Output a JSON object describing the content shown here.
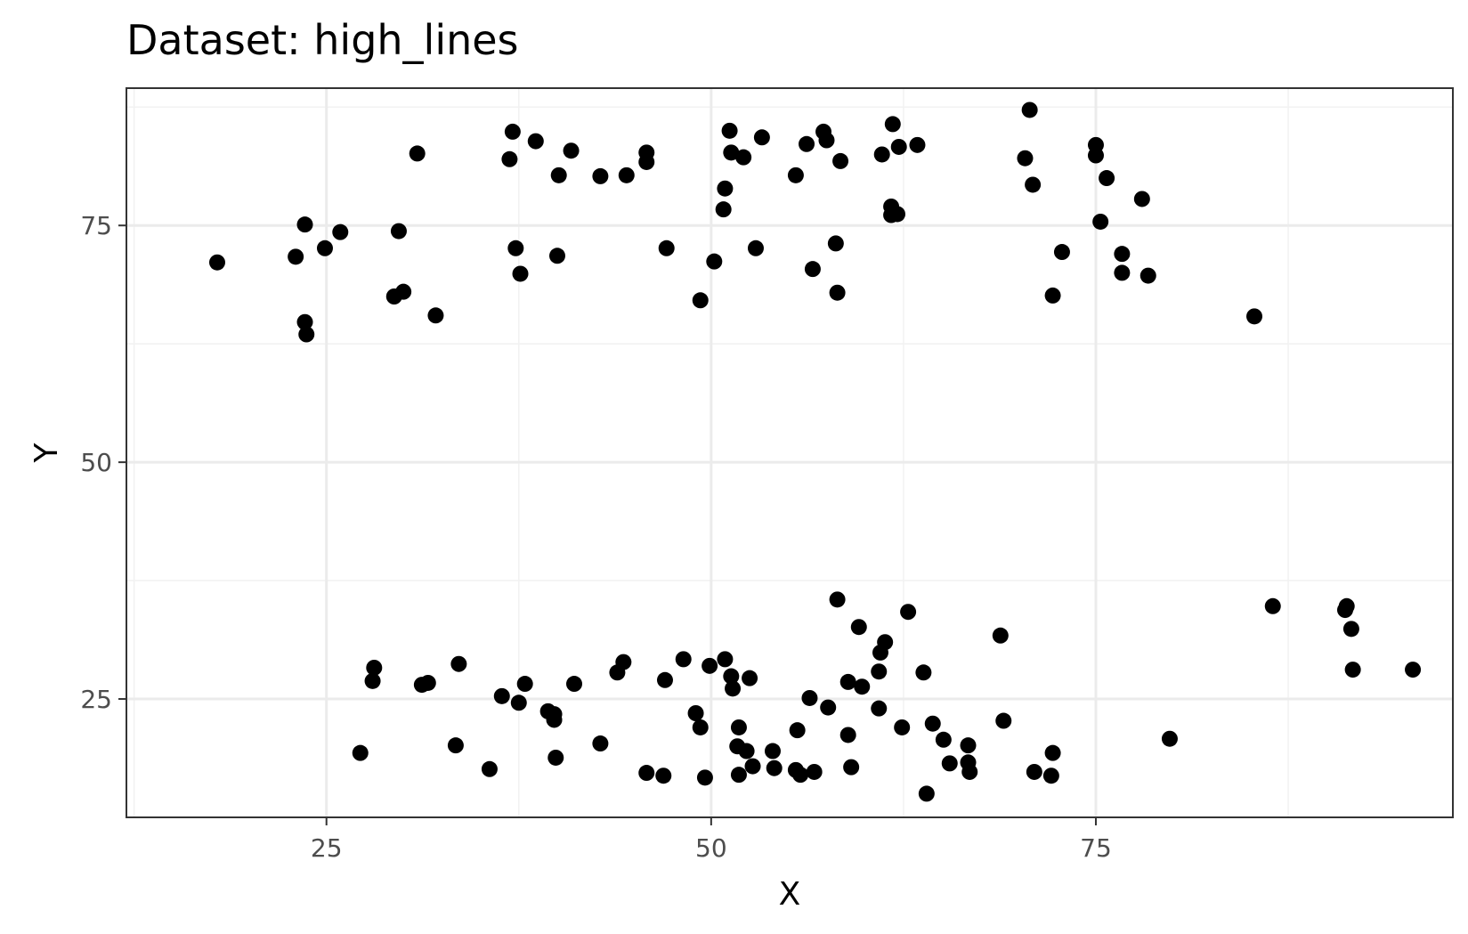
{
  "chart_data": {
    "type": "scatter",
    "title": "Dataset: high_lines",
    "xlabel": "X",
    "ylabel": "Y",
    "xlim": [
      12.0,
      98.2
    ],
    "ylim": [
      12.5,
      89.5
    ],
    "x_ticks": [
      25,
      50,
      75
    ],
    "y_ticks": [
      25,
      50,
      75
    ],
    "x_tick_labels": [
      "25",
      "50",
      "75"
    ],
    "y_tick_labels": [
      "25",
      "50",
      "75"
    ],
    "grid": true,
    "legend": "none",
    "point_color": "#000000",
    "series": [
      {
        "x": [
          17.9,
          23.0,
          23.6,
          23.6,
          23.7,
          24.9,
          25.9,
          29.4,
          29.7,
          30.0,
          30.9,
          32.1,
          36.9,
          37.1,
          37.3,
          37.6,
          38.6,
          40.1,
          40.0,
          40.9,
          42.8,
          44.5,
          45.8,
          45.8,
          47.1,
          49.3,
          50.2,
          50.8,
          50.9,
          51.2,
          51.3,
          52.1,
          52.9,
          53.3,
          55.5,
          56.2,
          56.6,
          57.3,
          57.5,
          58.1,
          58.2,
          58.4,
          61.1,
          61.7,
          61.7,
          61.8,
          62.1,
          62.2,
          63.4,
          70.4,
          70.7,
          70.9,
          72.2,
          72.8,
          75.0,
          75.0,
          75.3,
          75.7,
          76.7,
          76.7,
          78.0,
          78.4,
          85.3
        ],
        "y": [
          71.1,
          71.7,
          75.1,
          64.8,
          63.5,
          72.6,
          74.3,
          67.5,
          74.4,
          68.0,
          82.6,
          65.5,
          82.0,
          84.9,
          72.6,
          69.9,
          83.9,
          80.3,
          71.8,
          82.9,
          80.2,
          80.3,
          81.7,
          82.7,
          72.6,
          67.1,
          71.2,
          76.7,
          78.9,
          85.0,
          82.7,
          82.2,
          72.6,
          84.3,
          80.3,
          83.6,
          70.4,
          84.9,
          84.0,
          73.1,
          67.9,
          81.8,
          82.5,
          77.0,
          76.1,
          85.7,
          76.2,
          83.3,
          83.5,
          82.1,
          87.2,
          79.3,
          67.6,
          72.2,
          82.4,
          83.5,
          75.4,
          80.0,
          72.0,
          70.0,
          77.8,
          69.7,
          65.4
        ]
      },
      {
        "x": [
          27.2,
          28.0,
          28.1,
          31.2,
          31.6,
          33.4,
          33.6,
          35.6,
          36.4,
          37.5,
          37.9,
          39.4,
          39.8,
          39.8,
          39.9,
          41.1,
          42.8,
          43.9,
          44.3,
          45.8,
          46.9,
          47.0,
          48.2,
          49.0,
          49.3,
          49.6,
          49.9,
          50.9,
          51.3,
          51.4,
          51.7,
          51.8,
          51.8,
          52.3,
          52.5,
          52.7,
          54.0,
          54.1,
          55.5,
          55.6,
          55.8,
          56.4,
          56.7,
          57.6,
          58.2,
          58.9,
          58.9,
          59.1,
          59.6,
          59.8,
          60.9,
          60.9,
          61.0,
          61.3,
          62.4,
          62.8,
          63.8,
          64.0,
          64.4,
          65.1,
          65.5,
          66.7,
          66.7,
          66.8,
          68.8,
          69.0,
          71.0,
          72.1,
          72.2,
          79.8,
          86.5,
          91.2,
          91.3,
          91.6,
          91.7,
          95.6
        ],
        "y": [
          19.3,
          26.9,
          28.3,
          26.5,
          26.7,
          20.1,
          28.7,
          17.6,
          25.3,
          24.6,
          26.6,
          23.7,
          23.4,
          22.8,
          18.8,
          26.6,
          20.3,
          27.8,
          28.9,
          17.2,
          16.9,
          27.0,
          29.2,
          23.5,
          22.0,
          16.7,
          28.5,
          29.2,
          27.4,
          26.1,
          20.0,
          22.0,
          17.0,
          19.5,
          27.2,
          17.9,
          19.5,
          17.7,
          17.5,
          21.7,
          17.0,
          25.1,
          17.3,
          24.1,
          35.5,
          21.2,
          26.8,
          17.8,
          32.6,
          26.3,
          27.9,
          24.0,
          29.9,
          31.0,
          22.0,
          34.2,
          27.8,
          15.0,
          22.4,
          20.7,
          18.2,
          20.1,
          18.3,
          17.3,
          31.7,
          22.7,
          17.3,
          16.9,
          19.3,
          20.8,
          34.8,
          34.4,
          34.8,
          32.4,
          28.1,
          28.1
        ]
      }
    ]
  }
}
